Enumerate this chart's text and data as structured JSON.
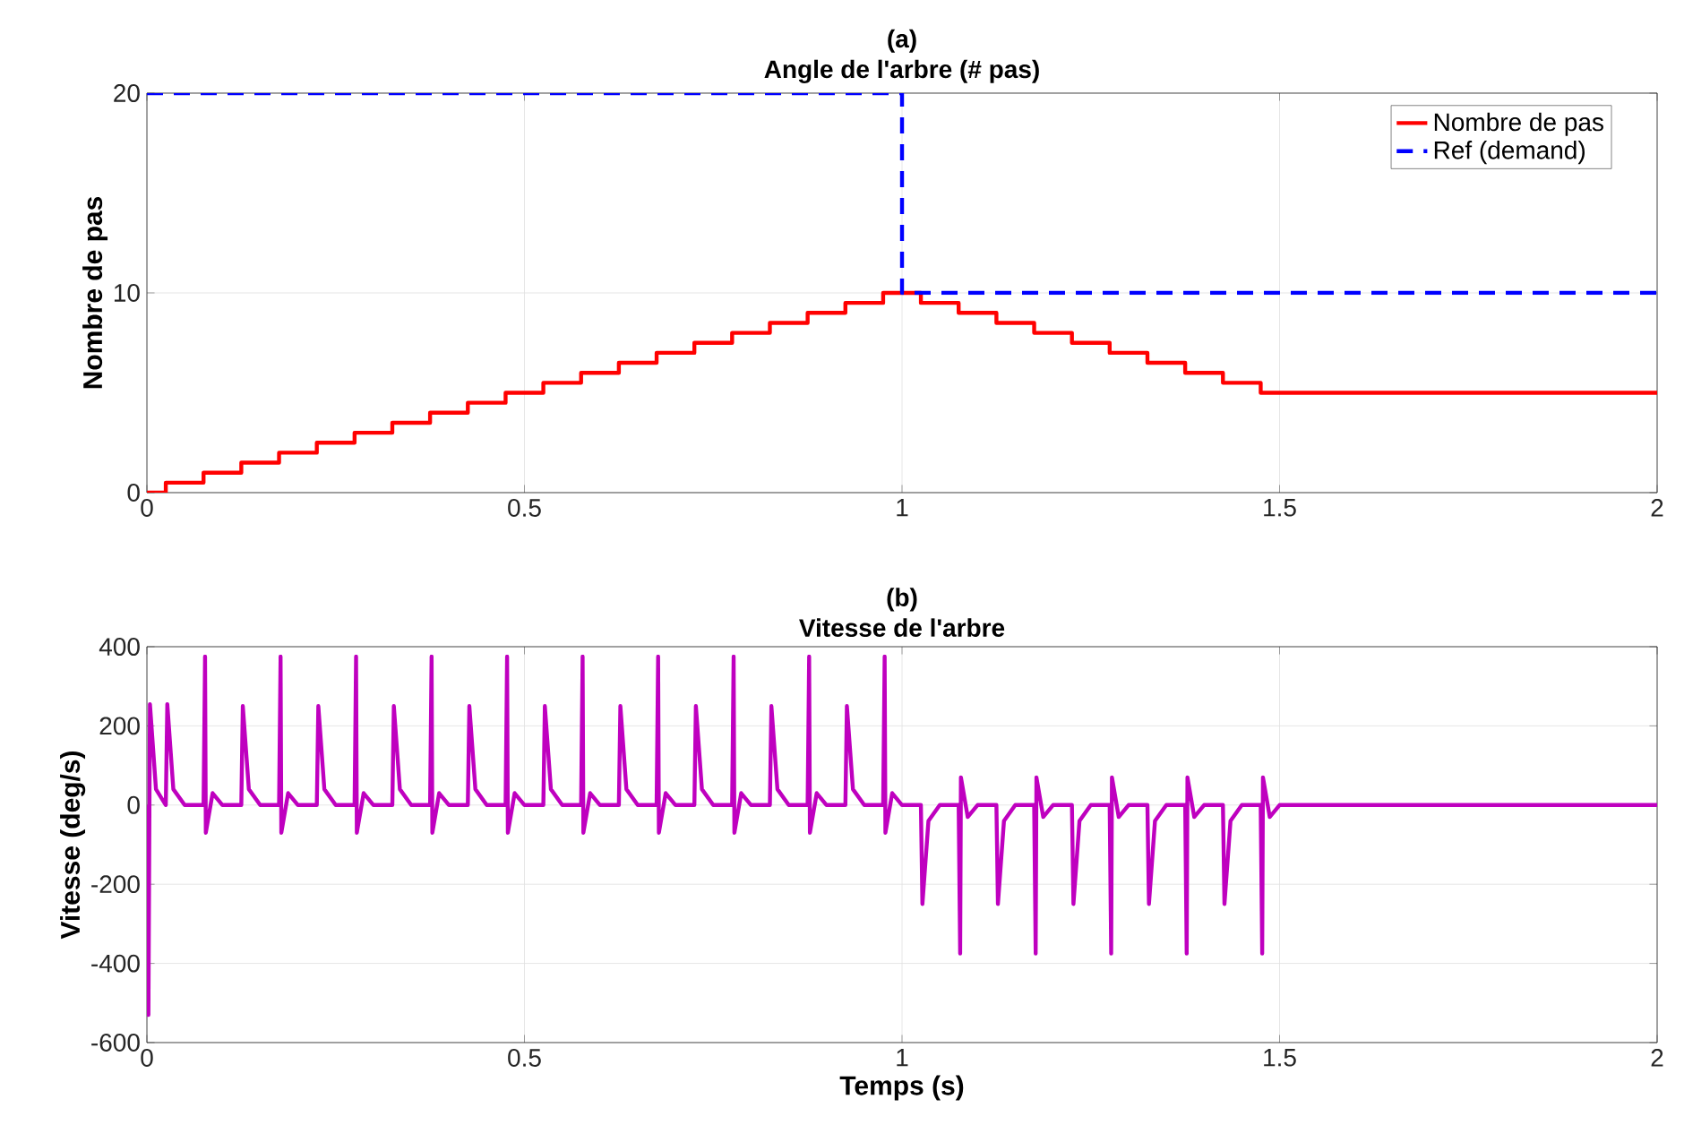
{
  "chart_data": [
    {
      "type": "step",
      "title": "(a)",
      "subtitle": "Angle de l'arbre (# pas)",
      "ylabel": "Nombre de pas",
      "xlim": [
        0,
        2
      ],
      "xticks": [
        0,
        0.5,
        1,
        1.5,
        2
      ],
      "ylim": [
        0,
        20
      ],
      "yticks": [
        0,
        10,
        20
      ],
      "grid": true,
      "legend": "top right",
      "series": [
        {
          "name": "Nombre de pas",
          "color": "#ff0000",
          "line_style": "solid",
          "x": [
            0,
            0.025,
            0.075,
            0.125,
            0.175,
            0.225,
            0.275,
            0.325,
            0.375,
            0.425,
            0.475,
            0.525,
            0.575,
            0.625,
            0.675,
            0.725,
            0.775,
            0.825,
            0.875,
            0.925,
            0.975,
            1.025,
            1.075,
            1.125,
            1.175,
            1.225,
            1.275,
            1.325,
            1.375,
            1.425,
            1.475,
            2
          ],
          "values": [
            0,
            0.5,
            1,
            1.5,
            2,
            2.5,
            3,
            3.5,
            4,
            4.5,
            5,
            5.5,
            6,
            6.5,
            7,
            7.5,
            8,
            8.5,
            9,
            9.5,
            10,
            9.5,
            9,
            8.5,
            8,
            7.5,
            7,
            6.5,
            6,
            5.5,
            5,
            5
          ]
        },
        {
          "name": "Ref (demand)",
          "color": "#0000ff",
          "line_style": "dashed",
          "x": [
            0,
            1,
            2
          ],
          "values": [
            20,
            10,
            10
          ]
        }
      ]
    },
    {
      "type": "line",
      "title": "(b)",
      "subtitle": "Vitesse de l'arbre",
      "xlabel": "Temps (s)",
      "ylabel": "Vitesse (deg/s)",
      "xlim": [
        0,
        2
      ],
      "xticks": [
        0,
        0.5,
        1,
        1.5,
        2
      ],
      "ylim": [
        -600,
        400
      ],
      "yticks": [
        -600,
        -400,
        -200,
        0,
        200,
        400
      ],
      "grid": true,
      "series": [
        {
          "color": "#bf00bf",
          "line_style": "solid",
          "x": [
            0,
            0.002,
            0.004,
            0.012,
            0.025,
            0.027,
            0.035,
            0.05,
            0.075,
            0.077,
            0.078,
            0.087,
            0.1,
            0.125,
            0.127,
            0.135,
            0.15,
            0.175,
            0.177,
            0.178,
            0.187,
            0.2,
            0.225,
            0.227,
            0.235,
            0.25,
            0.275,
            0.277,
            0.278,
            0.287,
            0.3,
            0.325,
            0.327,
            0.335,
            0.35,
            0.375,
            0.377,
            0.378,
            0.387,
            0.4,
            0.425,
            0.427,
            0.435,
            0.45,
            0.475,
            0.477,
            0.478,
            0.487,
            0.5,
            0.525,
            0.527,
            0.535,
            0.55,
            0.575,
            0.577,
            0.578,
            0.587,
            0.6,
            0.625,
            0.627,
            0.635,
            0.65,
            0.675,
            0.677,
            0.678,
            0.687,
            0.7,
            0.725,
            0.727,
            0.735,
            0.75,
            0.775,
            0.777,
            0.778,
            0.787,
            0.8,
            0.825,
            0.827,
            0.835,
            0.85,
            0.875,
            0.877,
            0.878,
            0.887,
            0.9,
            0.925,
            0.927,
            0.935,
            0.95,
            0.975,
            0.977,
            0.978,
            0.987,
            1.0,
            1.025,
            1.027,
            1.035,
            1.05,
            1.075,
            1.077,
            1.078,
            1.087,
            1.1,
            1.125,
            1.127,
            1.135,
            1.15,
            1.175,
            1.177,
            1.178,
            1.187,
            1.2,
            1.225,
            1.227,
            1.235,
            1.25,
            1.275,
            1.277,
            1.278,
            1.287,
            1.3,
            1.325,
            1.327,
            1.335,
            1.35,
            1.375,
            1.377,
            1.378,
            1.387,
            1.4,
            1.425,
            1.427,
            1.435,
            1.45,
            1.475,
            1.477,
            1.478,
            1.487,
            1.5,
            2
          ],
          "values": [
            0,
            -530,
            255,
            40,
            0,
            255,
            40,
            0,
            0,
            375,
            -70,
            30,
            0,
            0,
            250,
            40,
            0,
            0,
            375,
            -70,
            30,
            0,
            0,
            250,
            40,
            0,
            0,
            375,
            -70,
            30,
            0,
            0,
            250,
            40,
            0,
            0,
            375,
            -70,
            30,
            0,
            0,
            250,
            40,
            0,
            0,
            375,
            -70,
            30,
            0,
            0,
            250,
            40,
            0,
            0,
            375,
            -70,
            30,
            0,
            0,
            250,
            40,
            0,
            0,
            375,
            -70,
            30,
            0,
            0,
            250,
            40,
            0,
            0,
            375,
            -70,
            30,
            0,
            0,
            250,
            40,
            0,
            0,
            375,
            -70,
            30,
            0,
            0,
            250,
            40,
            0,
            0,
            375,
            -70,
            30,
            0,
            0,
            -250,
            -40,
            0,
            0,
            -375,
            70,
            -30,
            0,
            0,
            -250,
            -40,
            0,
            0,
            -375,
            70,
            -30,
            0,
            0,
            -250,
            -40,
            0,
            0,
            -375,
            70,
            -30,
            0,
            0,
            -250,
            -40,
            0,
            0,
            -375,
            70,
            -30,
            0,
            0,
            -250,
            -40,
            0,
            0,
            -375,
            70,
            -30,
            0,
            0
          ]
        }
      ]
    }
  ]
}
